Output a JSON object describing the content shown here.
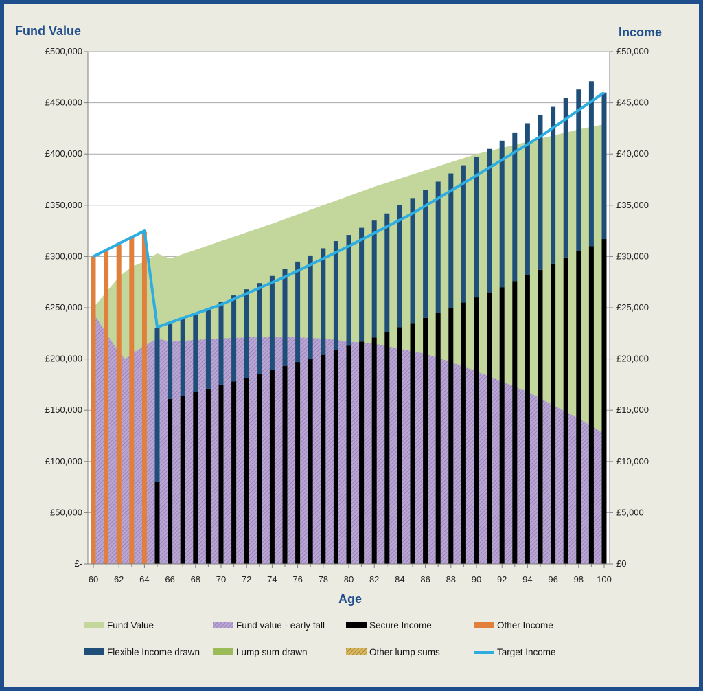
{
  "chart_data": {
    "type": "bar",
    "title": "",
    "y_left_title": "Fund Value",
    "y_right_title": "Income",
    "x_title": "Age",
    "x_range": [
      60,
      100
    ],
    "x_tick_labels": [
      "60",
      "62",
      "64",
      "66",
      "68",
      "70",
      "72",
      "74",
      "76",
      "78",
      "80",
      "82",
      "84",
      "86",
      "88",
      "90",
      "92",
      "94",
      "96",
      "98",
      "100"
    ],
    "y_left_range": [
      0,
      500000
    ],
    "y_left_tick_labels": [
      "£-",
      "£50,000",
      "£100,000",
      "£150,000",
      "£200,000",
      "£250,000",
      "£300,000",
      "£350,000",
      "£400,000",
      "£450,000",
      "£500,000"
    ],
    "y_right_range": [
      0,
      50000
    ],
    "y_right_tick_labels": [
      "£0",
      "£5,000",
      "£10,000",
      "£15,000",
      "£20,000",
      "£25,000",
      "£30,000",
      "£35,000",
      "£40,000",
      "£45,000",
      "£50,000"
    ],
    "grid": true,
    "legend_position": "bottom",
    "colors": {
      "fund_value": "#c3d69b",
      "early_fall": "#b4a0cd",
      "secure_income": "#000000",
      "other_income": "#e0803c",
      "flexible_income": "#1f4e79",
      "lump_sum": "#9bbb59",
      "other_lump": "#c8a24a",
      "target_income": "#2eaee0"
    },
    "series": [
      {
        "name": "Fund Value",
        "kind": "area",
        "axis": "left",
        "points": [
          [
            60,
            250000
          ],
          [
            61,
            265000
          ],
          [
            62,
            280000
          ],
          [
            63,
            290000
          ],
          [
            64,
            295000
          ],
          [
            65,
            303000
          ],
          [
            66,
            298000
          ],
          [
            70,
            315000
          ],
          [
            74,
            332000
          ],
          [
            78,
            350000
          ],
          [
            82,
            368000
          ],
          [
            86,
            384000
          ],
          [
            90,
            400000
          ],
          [
            94,
            412000
          ],
          [
            98,
            424000
          ],
          [
            100,
            429000
          ]
        ]
      },
      {
        "name": "Fund value - early fall",
        "kind": "area",
        "axis": "left",
        "points": [
          [
            60,
            245000
          ],
          [
            61,
            225000
          ],
          [
            62,
            207000
          ],
          [
            62.5,
            200000
          ],
          [
            63,
            205000
          ],
          [
            64,
            213000
          ],
          [
            65,
            220000
          ],
          [
            66,
            217000
          ],
          [
            70,
            220000
          ],
          [
            74,
            222000
          ],
          [
            78,
            220000
          ],
          [
            80,
            217000
          ],
          [
            82,
            215000
          ],
          [
            84,
            210000
          ],
          [
            86,
            205000
          ],
          [
            88,
            197000
          ],
          [
            90,
            188000
          ],
          [
            92,
            178000
          ],
          [
            94,
            168000
          ],
          [
            96,
            155000
          ],
          [
            98,
            142000
          ],
          [
            100,
            127000
          ]
        ]
      },
      {
        "name": "Secure Income",
        "kind": "bar",
        "axis": "right",
        "x": [
          65,
          66,
          67,
          68,
          69,
          70,
          71,
          72,
          73,
          74,
          75,
          76,
          77,
          78,
          79,
          80,
          81,
          82,
          83,
          84,
          85,
          86,
          87,
          88,
          89,
          90,
          91,
          92,
          93,
          94,
          95,
          96,
          97,
          98,
          99,
          100
        ],
        "values": [
          8000,
          16100,
          16400,
          16800,
          17100,
          17500,
          17800,
          18100,
          18500,
          18900,
          19300,
          19700,
          20000,
          20400,
          20900,
          21300,
          21700,
          22100,
          22600,
          23100,
          23500,
          24000,
          24500,
          25000,
          25500,
          26000,
          26500,
          27000,
          27600,
          28200,
          28700,
          29300,
          29900,
          30500,
          31000,
          31700
        ]
      },
      {
        "name": "Other Income",
        "kind": "bar",
        "axis": "right",
        "x": [
          60,
          61,
          62,
          63,
          64
        ],
        "values": [
          30000,
          30600,
          31100,
          31800,
          32400
        ]
      },
      {
        "name": "Flexible Income drawn",
        "kind": "bar",
        "axis": "right",
        "x": [
          65,
          66,
          67,
          68,
          69,
          70,
          71,
          72,
          73,
          74,
          75,
          76,
          77,
          78,
          79,
          80,
          81,
          82,
          83,
          84,
          85,
          86,
          87,
          88,
          89,
          90,
          91,
          92,
          93,
          94,
          95,
          96,
          97,
          98,
          99,
          100
        ],
        "values": [
          15000,
          7400,
          7600,
          7700,
          7900,
          8100,
          8400,
          8700,
          8900,
          9200,
          9500,
          9800,
          10100,
          10400,
          10600,
          10800,
          11100,
          11400,
          11600,
          11900,
          12200,
          12500,
          12800,
          13100,
          13400,
          13700,
          14000,
          14300,
          14500,
          14800,
          15100,
          15300,
          15600,
          15800,
          16100,
          14300
        ]
      },
      {
        "name": "Lump sum drawn",
        "kind": "bar",
        "axis": "right",
        "x": [],
        "values": []
      },
      {
        "name": "Other lump sums",
        "kind": "bar",
        "axis": "right",
        "x": [],
        "values": []
      },
      {
        "name": "Target Income",
        "kind": "line",
        "axis": "right",
        "points": [
          [
            60,
            30000
          ],
          [
            64,
            32500
          ],
          [
            65,
            23100
          ],
          [
            70,
            25300
          ],
          [
            75,
            28000
          ],
          [
            80,
            31000
          ],
          [
            85,
            34200
          ],
          [
            90,
            37900
          ],
          [
            95,
            41700
          ],
          [
            100,
            46000
          ]
        ]
      }
    ]
  }
}
